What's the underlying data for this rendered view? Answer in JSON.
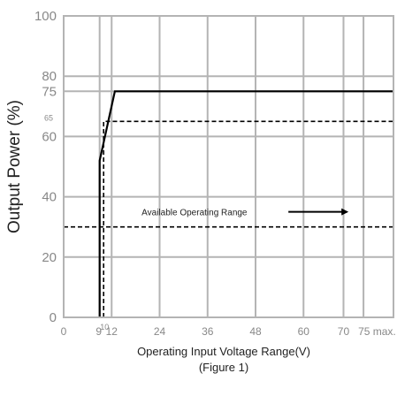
{
  "chart_data": {
    "type": "line",
    "title": "",
    "xlabel": "Operating Input Voltage Range(V)",
    "ylabel": "Output Power (%)",
    "caption": "(Figure 1)",
    "xlim": [
      0,
      82.5
    ],
    "ylim": [
      0,
      100
    ],
    "grid": true,
    "x_ticks": [
      {
        "value": 0,
        "label": "0"
      },
      {
        "value": 9,
        "label": "9"
      },
      {
        "value": 10,
        "label": "10",
        "style": "superscript"
      },
      {
        "value": 12,
        "label": "12"
      },
      {
        "value": 24,
        "label": "24"
      },
      {
        "value": 36,
        "label": "36"
      },
      {
        "value": 48,
        "label": "48"
      },
      {
        "value": 60,
        "label": "60"
      },
      {
        "value": 70,
        "label": "70"
      },
      {
        "value": 75,
        "label": "75 max."
      }
    ],
    "x_gridlines": [
      9,
      12,
      24,
      36,
      48,
      60,
      70,
      75
    ],
    "y_ticks": [
      {
        "value": 0,
        "label": "0"
      },
      {
        "value": 20,
        "label": "20"
      },
      {
        "value": 40,
        "label": "40"
      },
      {
        "value": 60,
        "label": "60"
      },
      {
        "value": 65,
        "label": "65",
        "style": "small"
      },
      {
        "value": 75,
        "label": "75"
      },
      {
        "value": 80,
        "label": "80"
      },
      {
        "value": 100,
        "label": "100"
      }
    ],
    "y_gridlines": [
      20,
      40,
      60,
      75,
      80
    ],
    "series": [
      {
        "style": "solid",
        "color": "#000000",
        "points": [
          [
            9,
            0
          ],
          [
            9,
            52
          ],
          [
            12.8,
            75
          ],
          [
            82.5,
            75
          ]
        ]
      },
      {
        "style": "dashed",
        "color": "#000000",
        "points": [
          [
            10,
            0
          ],
          [
            10,
            65
          ],
          [
            82.5,
            65
          ]
        ]
      },
      {
        "style": "dashed",
        "color": "#000000",
        "points": [
          [
            0,
            30
          ],
          [
            82.5,
            30
          ]
        ]
      }
    ],
    "annotations": [
      {
        "text": "Available Operating Range",
        "x": 19.5,
        "y": 35,
        "arrow": true
      }
    ]
  }
}
